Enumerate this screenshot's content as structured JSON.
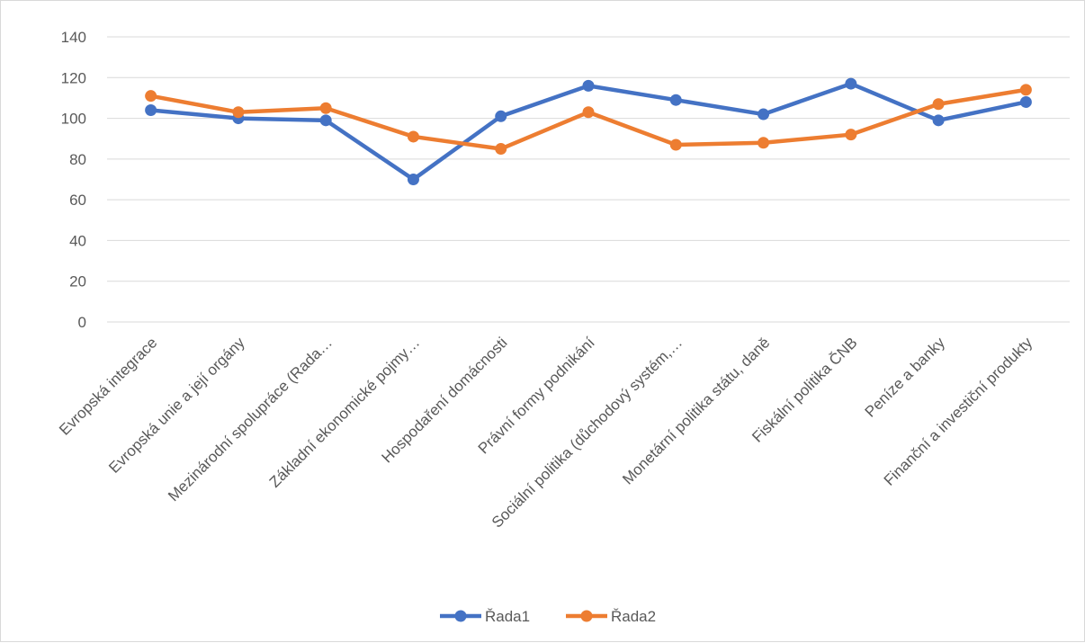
{
  "chart_data": {
    "type": "line",
    "categories": [
      "Evropská integrace",
      "Evropská unie a její orgány",
      "Mezinárodní spolupráce (Rada…",
      "Základní ekonomické pojmy…",
      "Hospodaření domácnosti",
      "Právní formy podnikání",
      "Sociální politika (důchodový systém,…",
      "Monetární politika státu, daně",
      "Fiskální politika ČNB",
      "Peníze a banky",
      "Finanční a investiční produkty"
    ],
    "series": [
      {
        "name": "Řada1",
        "color": "#4472c4",
        "values": [
          104,
          100,
          99,
          70,
          101,
          116,
          109,
          102,
          117,
          99,
          108
        ]
      },
      {
        "name": "Řada2",
        "color": "#ed7d31",
        "values": [
          111,
          103,
          105,
          91,
          85,
          103,
          87,
          88,
          92,
          107,
          114
        ]
      }
    ],
    "ylim": [
      0,
      140
    ],
    "yticks": [
      "0",
      "20",
      "40",
      "60",
      "80",
      "100",
      "120",
      "140"
    ],
    "grid": true,
    "legend": "bottom",
    "title": "",
    "xlabel": "",
    "ylabel": ""
  }
}
